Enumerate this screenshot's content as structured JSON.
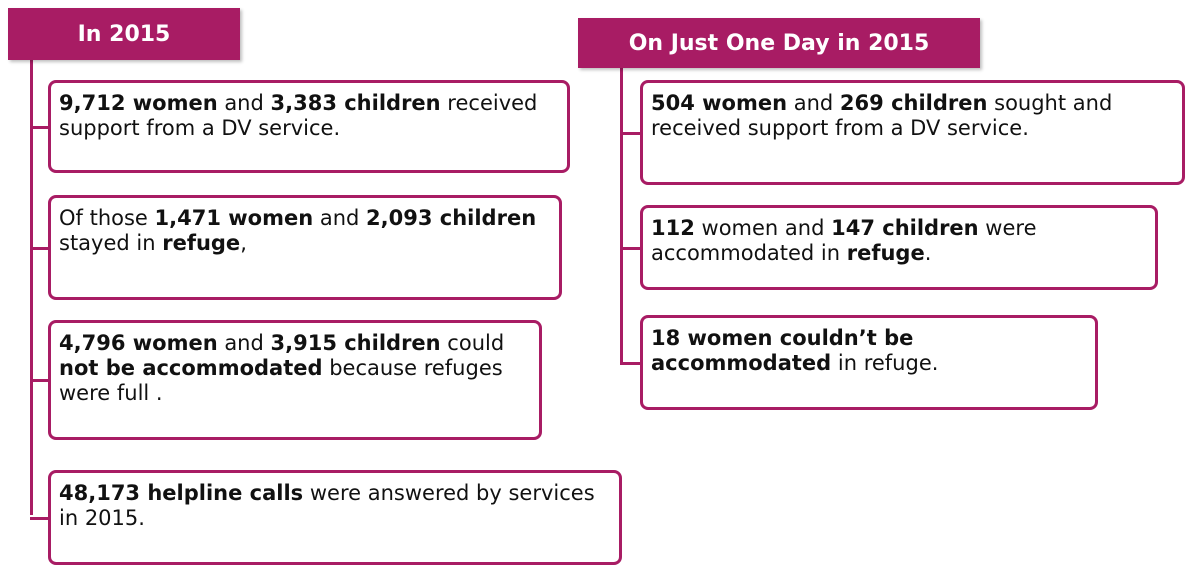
{
  "columns": [
    {
      "header": "In 2015",
      "boxes": [
        {
          "runs": [
            {
              "text": "9,712 women",
              "bold": true
            },
            {
              "text": " and ",
              "bold": false
            },
            {
              "text": "3,383 children",
              "bold": true
            },
            {
              "text": " received support from a DV service.",
              "bold": false
            }
          ]
        },
        {
          "runs": [
            {
              "text": "Of those ",
              "bold": false
            },
            {
              "text": "1,471 women",
              "bold": true
            },
            {
              "text": " and ",
              "bold": false
            },
            {
              "text": "2,093 children",
              "bold": true
            },
            {
              "text": " stayed in ",
              "bold": false
            },
            {
              "text": "refuge",
              "bold": true
            },
            {
              "text": ",",
              "bold": false
            }
          ]
        },
        {
          "runs": [
            {
              "text": "4,796 women",
              "bold": true
            },
            {
              "text": " and ",
              "bold": false
            },
            {
              "text": "3,915 children",
              "bold": true
            },
            {
              "text": " could ",
              "bold": false
            },
            {
              "text": "not be accommodated",
              "bold": true
            },
            {
              "text": " because refuges were full .",
              "bold": false
            }
          ]
        },
        {
          "runs": [
            {
              "text": "48,173 helpline calls",
              "bold": true
            },
            {
              "text": " were answered by services in 2015.",
              "bold": false
            }
          ]
        }
      ]
    },
    {
      "header": "On Just One Day in 2015",
      "boxes": [
        {
          "runs": [
            {
              "text": "504 women",
              "bold": true
            },
            {
              "text": " and ",
              "bold": false
            },
            {
              "text": "269 children",
              "bold": true
            },
            {
              "text": " sought and received support from a DV service.",
              "bold": false
            }
          ]
        },
        {
          "runs": [
            {
              "text": "112",
              "bold": true
            },
            {
              "text": " women and ",
              "bold": false
            },
            {
              "text": "147 children",
              "bold": true
            },
            {
              "text": " were accommodated in ",
              "bold": false
            },
            {
              "text": "refuge",
              "bold": true
            },
            {
              "text": ".",
              "bold": false
            }
          ]
        },
        {
          "runs": [
            {
              "text": "18 women couldn’t be accommodated",
              "bold": true
            },
            {
              "text": " in refuge.",
              "bold": false
            }
          ]
        }
      ]
    }
  ]
}
